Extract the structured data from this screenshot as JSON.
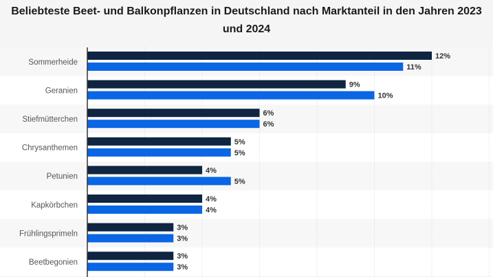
{
  "chart_data": {
    "type": "bar",
    "orientation": "horizontal",
    "title": "Beliebteste Beet- und Balkonpflanzen in Deutschland nach Marktanteil in den Jahren 2023 und 2024",
    "categories": [
      "Sommerheide",
      "Geranien",
      "Stiefmütterchen",
      "Chrysanthemen",
      "Petunien",
      "Kapkörbchen",
      "Frühlingsprimeln",
      "Beetbegonien"
    ],
    "series": [
      {
        "values": [
          12,
          9,
          6,
          5,
          4,
          4,
          3,
          3
        ],
        "labels": [
          "12%",
          "9%",
          "6%",
          "5%",
          "4%",
          "4%",
          "3%",
          "3%"
        ],
        "color": "#0f2541"
      },
      {
        "values": [
          11,
          10,
          6,
          5,
          5,
          4,
          3,
          3
        ],
        "labels": [
          "11%",
          "10%",
          "6%",
          "5%",
          "5%",
          "4%",
          "3%",
          "3%"
        ],
        "color": "#0a66e4"
      }
    ],
    "xlim": [
      0,
      14
    ],
    "grid": true,
    "legend": "none"
  }
}
